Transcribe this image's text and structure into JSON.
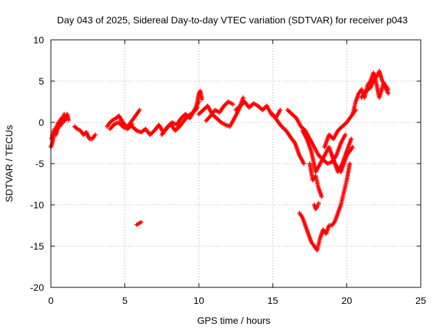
{
  "chart_data": {
    "type": "scatter",
    "title": "Day 043 of 2025, Sidereal Day-to-day VTEC variation (SDTVAR) for receiver p043",
    "xlabel": "GPS time / hours",
    "ylabel": "SDTVAR / TECUs",
    "xlim": [
      0,
      25
    ],
    "ylim": [
      -20,
      10
    ],
    "grid": true,
    "marker": "+",
    "color": "#ff0000",
    "xticks": [
      0,
      5,
      10,
      15,
      20,
      25
    ],
    "yticks": [
      -20,
      -15,
      -10,
      -5,
      0,
      5,
      10
    ],
    "xtick_labels": [
      "0",
      "5",
      "10",
      "15",
      "20",
      "25"
    ],
    "ytick_labels": [
      "-20",
      "-15",
      "-10",
      "-5",
      "0",
      "5",
      "10"
    ],
    "series": [
      {
        "name": "SDTVAR",
        "segments": [
          {
            "x": [
              0.0,
              0.1,
              0.2,
              0.3,
              0.4,
              0.5,
              0.6,
              0.7,
              0.8,
              0.9,
              1.0,
              1.1,
              1.2
            ],
            "y": [
              -3.0,
              -2.5,
              -1.5,
              -1.0,
              -0.5,
              0.0,
              -0.5,
              0.5,
              0.0,
              1.0,
              0.5,
              1.0,
              0.3
            ]
          },
          {
            "x": [
              0.05,
              0.15,
              0.25,
              0.35,
              0.45,
              0.55,
              0.65,
              0.75,
              0.85,
              0.95,
              1.05
            ],
            "y": [
              -2.0,
              -1.2,
              -0.8,
              -1.5,
              -0.8,
              -0.3,
              0.3,
              -0.2,
              0.6,
              0.2,
              0.7
            ]
          },
          {
            "x": [
              1.6,
              1.8,
              2.0,
              2.2,
              2.4,
              2.6,
              2.8,
              3.0
            ],
            "y": [
              -0.5,
              -0.8,
              -1.0,
              -1.5,
              -1.2,
              -2.0,
              -2.0,
              -1.5
            ]
          },
          {
            "x": [
              3.8,
              4.0,
              4.2,
              4.4,
              4.6,
              4.8,
              5.0,
              5.2,
              5.4,
              5.6,
              5.8,
              6.0
            ],
            "y": [
              -0.5,
              0.0,
              0.3,
              0.5,
              0.8,
              0.2,
              -0.3,
              -0.5,
              0.0,
              0.5,
              1.0,
              1.5
            ]
          },
          {
            "x": [
              4.0,
              4.3,
              4.6,
              4.9,
              5.2,
              5.5
            ],
            "y": [
              -0.8,
              -0.2,
              0.0,
              -0.6,
              -0.8,
              -0.2
            ]
          },
          {
            "x": [
              5.8,
              5.9,
              6.0,
              6.1
            ],
            "y": [
              -12.4,
              -12.3,
              -12.2,
              -12.1
            ]
          },
          {
            "x": [
              5.5,
              5.8,
              6.1,
              6.4,
              6.7,
              7.0,
              7.3,
              7.6,
              7.9,
              8.2,
              8.5,
              8.8,
              9.1,
              9.4,
              9.7,
              10.0
            ],
            "y": [
              -0.5,
              -1.0,
              -1.2,
              -0.8,
              -1.5,
              -1.0,
              -0.3,
              -1.2,
              -0.5,
              0.0,
              -0.3,
              0.5,
              1.0,
              0.5,
              1.5,
              2.5
            ]
          },
          {
            "x": [
              7.5,
              7.8,
              8.1,
              8.4,
              8.7,
              9.0,
              9.3,
              9.6,
              9.9
            ],
            "y": [
              -1.5,
              -0.8,
              -0.2,
              -1.0,
              -0.5,
              0.2,
              0.8,
              1.2,
              1.8
            ]
          },
          {
            "x": [
              9.8,
              9.9,
              10.0,
              10.1,
              10.2
            ],
            "y": [
              1.5,
              2.5,
              3.5,
              3.8,
              2.8
            ]
          },
          {
            "x": [
              10.0,
              10.3,
              10.6,
              10.9,
              11.2,
              11.5,
              11.8,
              12.1,
              12.4,
              12.7,
              13.0
            ],
            "y": [
              1.0,
              1.5,
              2.0,
              1.0,
              0.5,
              0.0,
              -0.3,
              -0.5,
              0.5,
              1.5,
              3.0
            ]
          },
          {
            "x": [
              10.5,
              10.8,
              11.1,
              11.4,
              11.7,
              12.0,
              12.3
            ],
            "y": [
              0.2,
              0.8,
              1.5,
              1.2,
              2.0,
              2.5,
              2.2
            ]
          },
          {
            "x": [
              12.5,
              12.8,
              13.1,
              13.4,
              13.7,
              14.0,
              14.3,
              14.6,
              14.9,
              15.2,
              15.5
            ],
            "y": [
              1.5,
              2.0,
              2.5,
              1.8,
              2.3,
              2.0,
              1.5,
              2.0,
              1.0,
              0.5,
              1.5
            ]
          },
          {
            "x": [
              15.0,
              15.3,
              15.6,
              15.9,
              16.2,
              16.5,
              16.8,
              17.1
            ],
            "y": [
              1.0,
              0.2,
              -0.5,
              -1.0,
              -1.8,
              -2.5,
              -4.0,
              -5.0
            ]
          },
          {
            "x": [
              16.0,
              16.3,
              16.6,
              16.9,
              17.2,
              17.5,
              17.8,
              18.1,
              18.4,
              18.7,
              19.0,
              19.3,
              19.6,
              19.9
            ],
            "y": [
              1.5,
              1.0,
              0.5,
              -0.5,
              -1.0,
              -2.0,
              -3.0,
              -4.0,
              -4.5,
              -5.0,
              -4.8,
              -4.0,
              -2.5,
              -1.5
            ]
          },
          {
            "x": [
              17.0,
              17.3,
              17.6,
              17.9,
              18.2,
              18.5,
              18.8,
              19.1,
              19.4,
              19.7,
              20.0,
              20.3
            ],
            "y": [
              -1.0,
              -2.0,
              -3.5,
              -6.0,
              -5.0,
              -4.0,
              -3.0,
              -4.5,
              -6.0,
              -5.0,
              -3.5,
              -2.0
            ]
          },
          {
            "x": [
              17.5,
              17.7,
              17.9,
              18.1,
              18.3
            ],
            "y": [
              -5.0,
              -7.0,
              -6.5,
              -8.0,
              -9.0
            ]
          },
          {
            "x": [
              17.8,
              17.9,
              18.0,
              18.1
            ],
            "y": [
              -10.0,
              -10.5,
              -10.2,
              -9.8
            ]
          },
          {
            "x": [
              16.8,
              17.0,
              17.2,
              17.4,
              17.6,
              17.8,
              18.0,
              18.2,
              18.4,
              18.6,
              18.8,
              19.0,
              19.2,
              19.4,
              19.6,
              19.8,
              20.0,
              20.2
            ],
            "y": [
              -11.0,
              -11.5,
              -12.5,
              -13.5,
              -14.5,
              -15.0,
              -15.5,
              -14.0,
              -13.0,
              -13.5,
              -12.5,
              -12.5,
              -12.0,
              -11.0,
              -10.0,
              -8.5,
              -7.0,
              -5.0
            ]
          },
          {
            "x": [
              19.0,
              19.2,
              19.4,
              19.6,
              19.8,
              20.0,
              20.2,
              20.4
            ],
            "y": [
              -4.0,
              -5.0,
              -5.5,
              -6.0,
              -5.0,
              -4.0,
              -3.5,
              -3.0
            ]
          },
          {
            "x": [
              18.5,
              18.8,
              19.1,
              19.4,
              19.7,
              20.0,
              20.2,
              20.4,
              20.6
            ],
            "y": [
              -3.0,
              -1.5,
              -2.0,
              -1.0,
              -0.5,
              0.0,
              0.5,
              1.0,
              1.5
            ]
          },
          {
            "x": [
              20.4,
              20.6,
              20.8,
              21.0,
              21.2,
              21.4,
              21.6,
              21.8,
              22.0,
              22.2,
              22.4,
              22.6,
              22.8
            ],
            "y": [
              1.0,
              2.5,
              3.5,
              4.0,
              3.0,
              4.5,
              5.0,
              6.0,
              5.5,
              6.2,
              5.0,
              4.5,
              4.0
            ]
          },
          {
            "x": [
              21.0,
              21.3,
              21.6,
              21.9,
              22.2,
              22.5,
              22.8
            ],
            "y": [
              3.0,
              3.8,
              4.2,
              5.5,
              3.0,
              4.8,
              3.5
            ]
          }
        ]
      }
    ]
  }
}
